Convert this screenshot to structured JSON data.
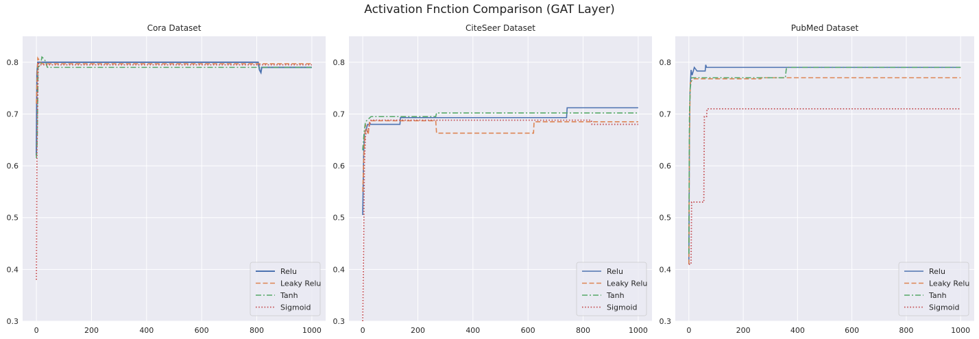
{
  "figure": {
    "title": "Activation Fnction Comparison  (GAT Layer)"
  },
  "chart_data": [
    {
      "type": "line",
      "title": "Cora Dataset",
      "xlabel": "",
      "ylabel": "",
      "xlim": [
        -50,
        1050
      ],
      "ylim": [
        0.3,
        0.85
      ],
      "xticks": [
        0,
        200,
        400,
        600,
        800,
        1000
      ],
      "yticks": [
        0.3,
        0.4,
        0.5,
        0.6,
        0.7,
        0.8
      ],
      "grid": true,
      "legend": "bottom-right",
      "series": [
        {
          "name": "Relu",
          "color": "#4c72b0",
          "dash": "solid",
          "width": 2.0,
          "points": [
            [
              0,
              0.62
            ],
            [
              2,
              0.78
            ],
            [
              5,
              0.8
            ],
            [
              805,
              0.8
            ],
            [
              810,
              0.785
            ],
            [
              815,
              0.78
            ],
            [
              818,
              0.79
            ],
            [
              1000,
              0.79
            ]
          ]
        },
        {
          "name": "Leaky Relu",
          "color": "#dd8452",
          "dash": "dashed",
          "width": 1.6,
          "points": [
            [
              0,
              0.72
            ],
            [
              3,
              0.78
            ],
            [
              5,
              0.808
            ],
            [
              15,
              0.8
            ],
            [
              20,
              0.797
            ],
            [
              1000,
              0.797
            ]
          ]
        },
        {
          "name": "Tanh",
          "color": "#55a868",
          "dash": "dashdot",
          "width": 1.6,
          "points": [
            [
              0,
              0.615
            ],
            [
              3,
              0.65
            ],
            [
              6,
              0.79
            ],
            [
              15,
              0.795
            ],
            [
              20,
              0.81
            ],
            [
              30,
              0.805
            ],
            [
              40,
              0.79
            ],
            [
              1000,
              0.79
            ]
          ]
        },
        {
          "name": "Sigmoid",
          "color": "#c44e52",
          "dash": "dotted",
          "width": 1.8,
          "points": [
            [
              0,
              0.38
            ],
            [
              2,
              0.62
            ],
            [
              4,
              0.72
            ],
            [
              7,
              0.8
            ],
            [
              10,
              0.795
            ],
            [
              1000,
              0.795
            ]
          ]
        }
      ]
    },
    {
      "type": "line",
      "title": "CiteSeer Dataset",
      "xlabel": "",
      "ylabel": "",
      "xlim": [
        -50,
        1050
      ],
      "ylim": [
        0.3,
        0.85
      ],
      "xticks": [
        0,
        200,
        400,
        600,
        800,
        1000
      ],
      "yticks": [
        0.3,
        0.4,
        0.5,
        0.6,
        0.7,
        0.8
      ],
      "grid": true,
      "legend": "bottom-right",
      "series": [
        {
          "name": "Relu",
          "color": "#4c72b0",
          "dash": "solid",
          "width": 1.6,
          "points": [
            [
              0,
              0.505
            ],
            [
              3,
              0.62
            ],
            [
              6,
              0.66
            ],
            [
              12,
              0.67
            ],
            [
              18,
              0.68
            ],
            [
              135,
              0.68
            ],
            [
              137,
              0.693
            ],
            [
              740,
              0.693
            ],
            [
              742,
              0.712
            ],
            [
              1000,
              0.712
            ]
          ]
        },
        {
          "name": "Leaky Relu",
          "color": "#dd8452",
          "dash": "dashed",
          "width": 1.6,
          "points": [
            [
              0,
              0.55
            ],
            [
              4,
              0.62
            ],
            [
              10,
              0.68
            ],
            [
              20,
              0.66
            ],
            [
              25,
              0.687
            ],
            [
              265,
              0.687
            ],
            [
              268,
              0.663
            ],
            [
              620,
              0.663
            ],
            [
              622,
              0.685
            ],
            [
              1000,
              0.685
            ]
          ]
        },
        {
          "name": "Tanh",
          "color": "#55a868",
          "dash": "dashdot",
          "width": 1.6,
          "points": [
            [
              0,
              0.63
            ],
            [
              5,
              0.665
            ],
            [
              10,
              0.685
            ],
            [
              20,
              0.69
            ],
            [
              30,
              0.695
            ],
            [
              265,
              0.695
            ],
            [
              268,
              0.702
            ],
            [
              1000,
              0.702
            ]
          ]
        },
        {
          "name": "Sigmoid",
          "color": "#c44e52",
          "dash": "dotted",
          "width": 1.8,
          "points": [
            [
              0,
              0.3
            ],
            [
              3,
              0.43
            ],
            [
              6,
              0.6
            ],
            [
              10,
              0.66
            ],
            [
              20,
              0.67
            ],
            [
              30,
              0.688
            ],
            [
              830,
              0.688
            ],
            [
              832,
              0.68
            ],
            [
              1000,
              0.68
            ]
          ]
        }
      ]
    },
    {
      "type": "line",
      "title": "PubMed Dataset",
      "xlabel": "",
      "ylabel": "",
      "xlim": [
        -50,
        1050
      ],
      "ylim": [
        0.3,
        0.85
      ],
      "xticks": [
        0,
        200,
        400,
        600,
        800,
        1000
      ],
      "yticks": [
        0.3,
        0.4,
        0.5,
        0.6,
        0.7,
        0.8
      ],
      "grid": true,
      "legend": "bottom-right",
      "series": [
        {
          "name": "Relu",
          "color": "#4c72b0",
          "dash": "solid",
          "width": 1.6,
          "points": [
            [
              0,
              0.41
            ],
            [
              2,
              0.65
            ],
            [
              4,
              0.74
            ],
            [
              8,
              0.785
            ],
            [
              12,
              0.775
            ],
            [
              20,
              0.79
            ],
            [
              30,
              0.783
            ],
            [
              60,
              0.783
            ],
            [
              62,
              0.795
            ],
            [
              65,
              0.79
            ],
            [
              1000,
              0.79
            ]
          ]
        },
        {
          "name": "Leaky Relu",
          "color": "#dd8452",
          "dash": "dashed",
          "width": 1.6,
          "points": [
            [
              0,
              0.41
            ],
            [
              2,
              0.65
            ],
            [
              5,
              0.76
            ],
            [
              15,
              0.768
            ],
            [
              265,
              0.768
            ],
            [
              268,
              0.77
            ],
            [
              1000,
              0.77
            ]
          ]
        },
        {
          "name": "Tanh",
          "color": "#55a868",
          "dash": "dashdot",
          "width": 1.6,
          "points": [
            [
              0,
              0.43
            ],
            [
              2,
              0.7
            ],
            [
              5,
              0.75
            ],
            [
              10,
              0.77
            ],
            [
              355,
              0.77
            ],
            [
              358,
              0.785
            ],
            [
              360,
              0.79
            ],
            [
              1000,
              0.79
            ]
          ]
        },
        {
          "name": "Sigmoid",
          "color": "#c44e52",
          "dash": "dotted",
          "width": 1.8,
          "points": [
            [
              0,
              0.41
            ],
            [
              8,
              0.41
            ],
            [
              10,
              0.53
            ],
            [
              55,
              0.53
            ],
            [
              57,
              0.695
            ],
            [
              65,
              0.695
            ],
            [
              67,
              0.71
            ],
            [
              1000,
              0.71
            ]
          ]
        }
      ]
    }
  ]
}
